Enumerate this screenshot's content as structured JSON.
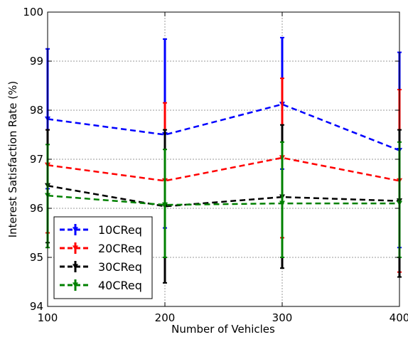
{
  "chart_data": {
    "type": "line",
    "title": "",
    "xlabel": "Number of Vehicles",
    "ylabel": "Interest Satisfaction Rate (%)",
    "x": [
      100,
      200,
      300,
      400
    ],
    "xlim": [
      100,
      400
    ],
    "ylim": [
      94,
      100
    ],
    "xticks": [
      "100",
      "200",
      "300",
      "400"
    ],
    "yticks": [
      "94",
      "95",
      "96",
      "97",
      "98",
      "99",
      "100"
    ],
    "grid": true,
    "legend_position": "lower-left",
    "series": [
      {
        "name": "10CReq",
        "color": "#0000ff",
        "values": [
          97.82,
          97.5,
          98.12,
          97.18
        ],
        "err_low": [
          96.4,
          95.6,
          96.8,
          95.2
        ],
        "err_high": [
          99.25,
          99.45,
          99.48,
          99.18
        ]
      },
      {
        "name": "20CReq",
        "color": "#ff0000",
        "values": [
          96.88,
          96.56,
          97.03,
          96.56
        ],
        "err_low": [
          95.5,
          95.0,
          95.4,
          94.7
        ],
        "err_high": [
          97.6,
          98.15,
          98.65,
          98.42
        ]
      },
      {
        "name": "30CReq",
        "color": "#000000",
        "values": [
          96.46,
          96.04,
          96.23,
          96.15
        ],
        "err_low": [
          95.3,
          94.48,
          94.78,
          94.6
        ],
        "err_high": [
          97.6,
          97.6,
          97.7,
          97.6
        ]
      },
      {
        "name": "40CReq",
        "color": "#008000",
        "values": [
          96.26,
          96.07,
          96.1,
          96.1
        ],
        "err_low": [
          95.2,
          95.0,
          95.0,
          95.0
        ],
        "err_high": [
          97.3,
          97.2,
          97.35,
          97.35
        ]
      }
    ]
  }
}
